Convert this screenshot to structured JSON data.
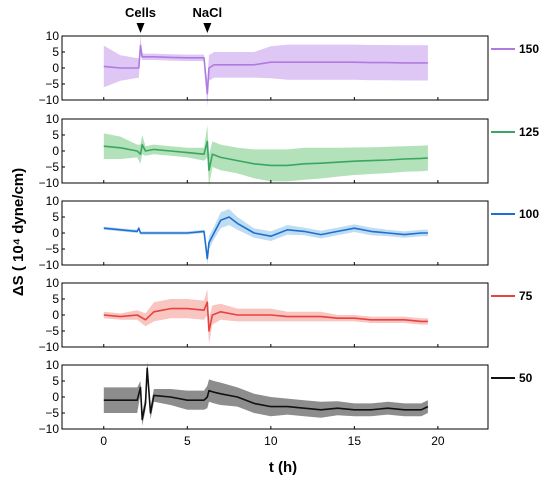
{
  "chart_data": {
    "type": "line",
    "xlabel": "t (h)",
    "ylabel": "ΔS ( 10⁴ dyne/cm)",
    "xlim": [
      -2.5,
      23
    ],
    "x_ticks": [
      0,
      5,
      10,
      15,
      20
    ],
    "x_tick_labels": [
      "0",
      "5",
      "10",
      "15",
      "20"
    ],
    "ylim": [
      -10,
      10
    ],
    "y_ticks": [
      -10,
      -5,
      0,
      5,
      10
    ],
    "y_tick_labels": [
      "−10",
      "−5",
      "0",
      "5",
      "10"
    ],
    "grid": false,
    "legend_placement": "top-right of each panel",
    "annotations": [
      {
        "text": "Cells",
        "x": 2.2
      },
      {
        "text": "NaCl",
        "x": 6.2
      }
    ],
    "panels": [
      {
        "label": "150",
        "color": "#b07be0",
        "band_color": "#d6b8f2",
        "x": [
          0,
          1,
          2.1,
          2.2,
          2.3,
          2.5,
          3,
          4,
          5,
          6,
          6.2,
          6.3,
          6.6,
          7,
          8,
          9,
          10,
          11,
          12,
          13,
          14,
          15,
          16,
          17,
          18,
          19,
          19.4
        ],
        "values": [
          0.5,
          0,
          0,
          7,
          3.5,
          3.5,
          3.5,
          3.3,
          3.2,
          3.2,
          -8,
          0,
          1,
          1,
          1,
          1,
          1.8,
          1.8,
          1.8,
          1.8,
          1.8,
          1.8,
          1.7,
          1.7,
          1.6,
          1.6,
          1.6
        ],
        "band": [
          6.5,
          4,
          3,
          3,
          1,
          1,
          1,
          1,
          1,
          1,
          4,
          4,
          4,
          4,
          4,
          4,
          5,
          5.5,
          5.5,
          5.5,
          5.5,
          5.5,
          5.5,
          5.5,
          5.5,
          5.5,
          5.5
        ]
      },
      {
        "label": "125",
        "color": "#3aa662",
        "band_color": "#9fdaa9",
        "x": [
          0,
          1,
          2,
          2.2,
          2.3,
          2.5,
          3,
          4,
          5,
          6,
          6.2,
          6.3,
          6.5,
          7,
          8,
          9,
          10,
          11,
          12,
          13,
          14,
          15,
          16,
          17,
          18,
          19,
          19.4
        ],
        "values": [
          1.5,
          1,
          0,
          -1,
          2,
          0,
          0.5,
          0,
          -0.5,
          -1,
          3,
          -6,
          -1,
          -2,
          -3,
          -4,
          -4.5,
          -4.5,
          -4,
          -3.8,
          -3.5,
          -3.2,
          -3,
          -2.8,
          -2.5,
          -2.3,
          -2.2
        ],
        "band": [
          4,
          3.5,
          2,
          3,
          3,
          1.5,
          1.5,
          1.5,
          1.5,
          2,
          5,
          5,
          4,
          4,
          4,
          4.5,
          5,
          5,
          5,
          4.8,
          4.5,
          4.3,
          4.2,
          4.1,
          4,
          4,
          4
        ]
      },
      {
        "label": "100",
        "color": "#1f6fd1",
        "band_color": "#aed4f0",
        "x": [
          0,
          1,
          2,
          2.1,
          2.2,
          2.5,
          3,
          4,
          5,
          6,
          6.2,
          6.3,
          6.6,
          7,
          7.5,
          8,
          9,
          10,
          11,
          12,
          13,
          14,
          15,
          16,
          17,
          18,
          19,
          19.4
        ],
        "values": [
          1.5,
          1,
          0.5,
          1.5,
          0,
          0,
          0,
          0,
          0,
          0.5,
          -8,
          -3,
          0,
          4,
          5,
          3,
          0,
          -1,
          1,
          0.5,
          -0.5,
          0.5,
          1.5,
          0.5,
          0,
          -0.5,
          0,
          0
        ],
        "band": [
          0.5,
          0.5,
          0.5,
          0.5,
          0.5,
          0.5,
          0.5,
          0.5,
          0.5,
          0.5,
          2,
          2,
          2,
          2.5,
          2.5,
          2,
          1.5,
          1.5,
          1.5,
          1.2,
          1.2,
          1.2,
          1.2,
          1.2,
          1,
          1,
          1,
          1
        ]
      },
      {
        "label": "75",
        "color": "#e8423e",
        "band_color": "#f6b6b2",
        "x": [
          0,
          1,
          2,
          2.5,
          3,
          4,
          5,
          6,
          6.2,
          6.3,
          6.5,
          7,
          8,
          9,
          10,
          11,
          12,
          13,
          14,
          15,
          16,
          17,
          18,
          19,
          19.4
        ],
        "values": [
          0,
          -0.5,
          0,
          -1.5,
          1,
          2,
          2,
          1.5,
          4,
          -5,
          0,
          1,
          0,
          0,
          0,
          -0.5,
          -0.5,
          -0.5,
          -1,
          -1,
          -1.5,
          -1.5,
          -1.5,
          -2,
          -2
        ],
        "band": [
          1,
          1,
          1.5,
          2,
          3,
          3,
          3,
          3,
          4,
          4,
          3,
          2.5,
          2,
          2,
          2,
          1.5,
          1.5,
          1.5,
          1,
          1,
          1,
          1,
          1,
          1,
          1
        ]
      },
      {
        "label": "50",
        "color": "#111111",
        "band_color": "#707070",
        "x": [
          0,
          1,
          2,
          2.2,
          2.3,
          2.5,
          2.6,
          2.8,
          3,
          4,
          5,
          6,
          6.2,
          6.3,
          6.6,
          7,
          8,
          9,
          10,
          11,
          12,
          13,
          14,
          15,
          16,
          17,
          18,
          19,
          19.4
        ],
        "values": [
          -1,
          -1,
          -1,
          3,
          -7,
          -2,
          9,
          -5,
          0.5,
          0,
          -1,
          -1,
          0,
          2,
          1.5,
          1,
          0,
          -2,
          -3,
          -3,
          -3.5,
          -4,
          -3.5,
          -4,
          -4,
          -3.5,
          -4,
          -4,
          -3
        ],
        "band": [
          4,
          4,
          4,
          2,
          2,
          2,
          2,
          2,
          2,
          2.5,
          3,
          3,
          3.5,
          3.5,
          3.5,
          3.5,
          3,
          3,
          3,
          2.5,
          2.5,
          2.5,
          2.2,
          2,
          2,
          2,
          2,
          2,
          2
        ]
      }
    ]
  }
}
